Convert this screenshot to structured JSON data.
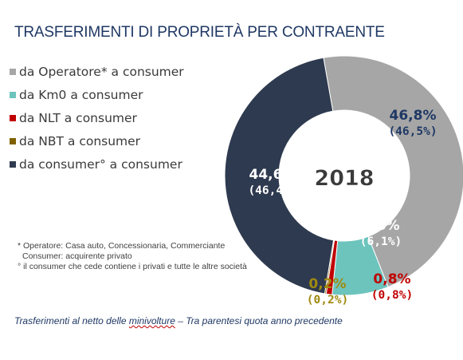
{
  "title": "TRASFERIMENTI DI PROPRIETÀ PER CONTRAENTE",
  "legend": [
    {
      "label": "da Operatore* a consumer",
      "color": "#a6a6a6"
    },
    {
      "label": "da Km0 a consumer",
      "color": "#6cc4bd"
    },
    {
      "label": "da NLT a consumer",
      "color": "#c00000"
    },
    {
      "label": "da NBT a consumer",
      "color": "#7f6000"
    },
    {
      "label": "da consumer° a consumer",
      "color": "#2e3a4f"
    }
  ],
  "notes": {
    "line1": "* Operatore: Casa auto, Concessionaria, Commerciante",
    "line2": "Consumer: acquirente privato",
    "line3": "° il consumer che cede contiene i privati e tutte le altre società"
  },
  "footer": {
    "part1": "Trasferimenti al netto delle ",
    "part2": "minivolture",
    "part3": " – Tra parentesi quota anno precedente"
  },
  "chart_data": {
    "type": "pie",
    "style": "donut",
    "center_label": "2018",
    "series": [
      {
        "name": "da Operatore* a consumer",
        "value": 46.8,
        "previous": 46.5,
        "label": "46,8%",
        "previous_label": "(46,5%)",
        "color": "#a6a6a6",
        "label_color": "#1f3864"
      },
      {
        "name": "da Km0 a consumer",
        "value": 7.6,
        "previous": 6.1,
        "label": "7,6%",
        "previous_label": "(6,1%)",
        "color": "#6cc4bd",
        "label_color": "#ffffff"
      },
      {
        "name": "da NLT a consumer",
        "value": 0.8,
        "previous": 0.8,
        "label": "0,8%",
        "previous_label": "(0,8%)",
        "color": "#c00000",
        "label_color": "#c00000"
      },
      {
        "name": "da NBT a consumer",
        "value": 0.2,
        "previous": 0.2,
        "label": "0,2%",
        "previous_label": "(0,2%)",
        "color": "#7f6000",
        "label_color": "#a08a10"
      },
      {
        "name": "da consumer° a consumer",
        "value": 44.6,
        "previous": 46.4,
        "label": "44,6%",
        "previous_label": "(46,4%)",
        "color": "#2e3a4f",
        "label_color": "#ffffff"
      }
    ]
  }
}
